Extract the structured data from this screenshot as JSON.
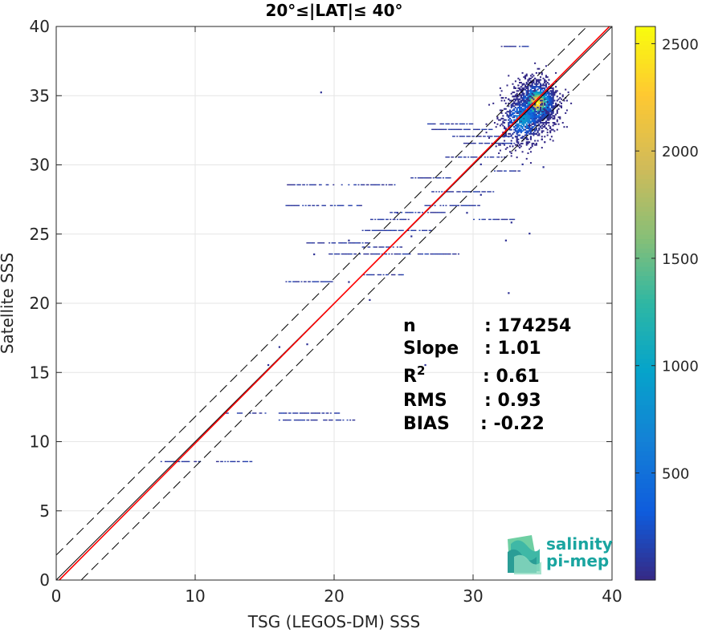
{
  "chart_data": {
    "type": "heatmap",
    "title": "20°≤|LAT|≤ 40°",
    "xlabel": "TSG (LEGOS-DM) SSS",
    "ylabel": "Satellite SSS",
    "xlim": [
      0,
      40
    ],
    "ylim": [
      0,
      40
    ],
    "xticks": [
      "0",
      "10",
      "20",
      "30",
      "40"
    ],
    "yticks": [
      "0",
      "5",
      "10",
      "15",
      "20",
      "25",
      "30",
      "35",
      "40"
    ],
    "grid": true,
    "colorbar": {
      "range": [
        1,
        2580
      ],
      "ticks": [
        "500",
        "1000",
        "1500",
        "2000",
        "2500"
      ],
      "colormap": "parula"
    },
    "stats": [
      {
        "key": "n",
        "value": ": 174254"
      },
      {
        "key": "Slope",
        "value": ": 1.01"
      },
      {
        "key": "R",
        "sup": "2",
        "value": ": 0.61"
      },
      {
        "key": "RMS",
        "value": ": 0.93"
      },
      {
        "key": "BIAS",
        "value": ": -0.22"
      }
    ],
    "fit_line": {
      "slope": 1.01,
      "intercept": -0.22,
      "color": "#ff0000"
    },
    "identity_line": {
      "color": "#000000"
    },
    "envelope_offset": 1.8,
    "density_clusters": [
      {
        "cx": 34.6,
        "cy": 34.5,
        "sx": 0.75,
        "sy": 0.85,
        "n": 1400,
        "peak": 2580
      },
      {
        "cx": 33.6,
        "cy": 33.3,
        "sx": 0.9,
        "sy": 1.0,
        "n": 700,
        "peak": 900
      }
    ],
    "streaks": [
      {
        "x0": 16.0,
        "x1": 20.5,
        "y": 12.0
      },
      {
        "x0": 16.0,
        "x1": 21.5,
        "y": 11.5
      },
      {
        "x0": 12.0,
        "x1": 15.0,
        "y": 12.0
      },
      {
        "x0": 7.5,
        "x1": 10.5,
        "y": 8.5
      },
      {
        "x0": 11.5,
        "x1": 14.0,
        "y": 8.5
      },
      {
        "x0": 19.5,
        "x1": 25.5,
        "y": 23.5
      },
      {
        "x0": 22.0,
        "x1": 25.0,
        "y": 24.0
      },
      {
        "x0": 18.0,
        "x1": 22.5,
        "y": 24.3
      },
      {
        "x0": 22.0,
        "x1": 27.0,
        "y": 25.2
      },
      {
        "x0": 22.5,
        "x1": 25.5,
        "y": 26.0
      },
      {
        "x0": 24.0,
        "x1": 28.0,
        "y": 26.5
      },
      {
        "x0": 16.5,
        "x1": 22.0,
        "y": 27.0
      },
      {
        "x0": 16.5,
        "x1": 20.0,
        "y": 28.5
      },
      {
        "x0": 20.5,
        "x1": 24.5,
        "y": 28.5
      },
      {
        "x0": 26.5,
        "x1": 30.5,
        "y": 27.0
      },
      {
        "x0": 27.0,
        "x1": 31.5,
        "y": 28.0
      },
      {
        "x0": 25.5,
        "x1": 28.5,
        "y": 29.0
      },
      {
        "x0": 28.0,
        "x1": 32.5,
        "y": 30.5
      },
      {
        "x0": 29.0,
        "x1": 33.0,
        "y": 31.5
      },
      {
        "x0": 28.5,
        "x1": 33.0,
        "y": 32.0
      },
      {
        "x0": 27.0,
        "x1": 31.5,
        "y": 32.5
      },
      {
        "x0": 26.5,
        "x1": 30.0,
        "y": 32.9
      },
      {
        "x0": 16.5,
        "x1": 20.0,
        "y": 21.5
      },
      {
        "x0": 26.0,
        "x1": 29.0,
        "y": 23.5
      },
      {
        "x0": 22.0,
        "x1": 25.0,
        "y": 22.0
      },
      {
        "x0": 30.0,
        "x1": 33.0,
        "y": 26.0
      },
      {
        "x0": 31.5,
        "x1": 33.5,
        "y": 29.5
      },
      {
        "x0": 32.0,
        "x1": 34.0,
        "y": 38.5
      }
    ],
    "points": [
      [
        19.0,
        35.2
      ],
      [
        21.0,
        21.5
      ],
      [
        22.5,
        20.2
      ],
      [
        15.2,
        15.5
      ],
      [
        16.0,
        16.8
      ],
      [
        18.0,
        17.0
      ],
      [
        26.5,
        15.5
      ],
      [
        32.5,
        20.7
      ],
      [
        32.3,
        24.5
      ],
      [
        32.7,
        25.8
      ],
      [
        34.0,
        25.0
      ],
      [
        33.5,
        30.0
      ],
      [
        35.0,
        29.8
      ],
      [
        30.5,
        30.0
      ],
      [
        25.5,
        24.8
      ],
      [
        21.0,
        24.5
      ],
      [
        18.5,
        23.5
      ],
      [
        24.5,
        26.5
      ],
      [
        29.5,
        26.5
      ],
      [
        30.5,
        27.8
      ]
    ]
  },
  "logo": {
    "line1": "salinity",
    "line2": "pi-mep",
    "color": "#1aa5a0"
  }
}
